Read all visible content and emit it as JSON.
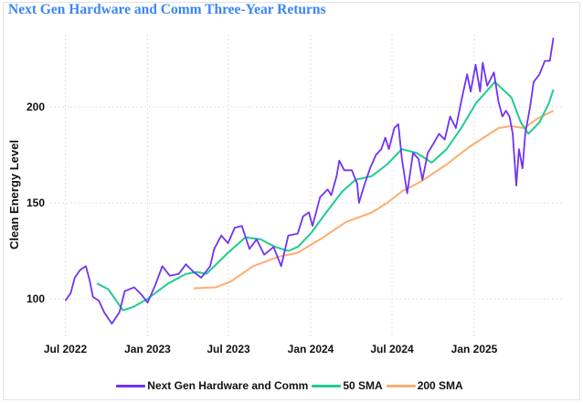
{
  "title": "Next Gen Hardware and Comm Three-Year Returns",
  "chart_data": {
    "type": "line",
    "title": "Next Gen Hardware and Comm Three-Year Returns",
    "xlabel": "",
    "ylabel": "Clean Energy Level",
    "x_ticks": [
      "Jul 2022",
      "Jan 2023",
      "Jul 2023",
      "Jan 2024",
      "Jul 2024",
      "Jan 2025"
    ],
    "x_tick_dates": [
      "2022-07-01",
      "2023-01-01",
      "2023-07-01",
      "2024-01-01",
      "2024-07-01",
      "2025-01-01"
    ],
    "y_ticks": [
      100,
      150,
      200
    ],
    "xlim": [
      "2022-06-10",
      "2025-07-12"
    ],
    "ylim": [
      80,
      240
    ],
    "grid": true,
    "legend_position": "bottom",
    "series": [
      {
        "name": "Next Gen Hardware and Comm",
        "color": "#7033f5",
        "points": [
          [
            "2022-07-01",
            99
          ],
          [
            "2022-07-13",
            103
          ],
          [
            "2022-07-22",
            111
          ],
          [
            "2022-08-03",
            115
          ],
          [
            "2022-08-16",
            117
          ],
          [
            "2022-08-24",
            110
          ],
          [
            "2022-09-01",
            101
          ],
          [
            "2022-09-14",
            99
          ],
          [
            "2022-09-26",
            93
          ],
          [
            "2022-10-13",
            87
          ],
          [
            "2022-10-30",
            93
          ],
          [
            "2022-11-11",
            104
          ],
          [
            "2022-12-02",
            106
          ],
          [
            "2022-12-19",
            102
          ],
          [
            "2023-01-01",
            98
          ],
          [
            "2023-01-18",
            107
          ],
          [
            "2023-02-03",
            117
          ],
          [
            "2023-02-20",
            112
          ],
          [
            "2023-03-12",
            113
          ],
          [
            "2023-03-28",
            118
          ],
          [
            "2023-04-14",
            114
          ],
          [
            "2023-05-01",
            111
          ],
          [
            "2023-05-21",
            117
          ],
          [
            "2023-05-30",
            126
          ],
          [
            "2023-06-15",
            133
          ],
          [
            "2023-06-30",
            129
          ],
          [
            "2023-07-15",
            137
          ],
          [
            "2023-07-31",
            138
          ],
          [
            "2023-08-17",
            126
          ],
          [
            "2023-09-02",
            131
          ],
          [
            "2023-09-19",
            123
          ],
          [
            "2023-10-10",
            127
          ],
          [
            "2023-10-27",
            117
          ],
          [
            "2023-11-12",
            133
          ],
          [
            "2023-12-03",
            134
          ],
          [
            "2023-12-15",
            143
          ],
          [
            "2023-12-28",
            145
          ],
          [
            "2024-01-05",
            138
          ],
          [
            "2024-01-22",
            153
          ],
          [
            "2024-02-08",
            157
          ],
          [
            "2024-02-16",
            154
          ],
          [
            "2024-02-28",
            164
          ],
          [
            "2024-03-05",
            172
          ],
          [
            "2024-03-16",
            167
          ],
          [
            "2024-04-02",
            167
          ],
          [
            "2024-04-14",
            160
          ],
          [
            "2024-04-18",
            150
          ],
          [
            "2024-05-01",
            160
          ],
          [
            "2024-05-13",
            168
          ],
          [
            "2024-05-26",
            175
          ],
          [
            "2024-06-07",
            178
          ],
          [
            "2024-06-16",
            184
          ],
          [
            "2024-06-24",
            178
          ],
          [
            "2024-07-06",
            189
          ],
          [
            "2024-07-15",
            191
          ],
          [
            "2024-07-23",
            173
          ],
          [
            "2024-08-04",
            155
          ],
          [
            "2024-08-17",
            176
          ],
          [
            "2024-08-29",
            173
          ],
          [
            "2024-09-07",
            162
          ],
          [
            "2024-09-19",
            176
          ],
          [
            "2024-10-02",
            181
          ],
          [
            "2024-10-14",
            186
          ],
          [
            "2024-10-27",
            183
          ],
          [
            "2024-11-08",
            195
          ],
          [
            "2024-11-21",
            189
          ],
          [
            "2024-12-03",
            203
          ],
          [
            "2024-12-16",
            217
          ],
          [
            "2024-12-24",
            208
          ],
          [
            "2025-01-04",
            222
          ],
          [
            "2025-01-14",
            208
          ],
          [
            "2025-01-20",
            223
          ],
          [
            "2025-01-30",
            211
          ],
          [
            "2025-02-14",
            218
          ],
          [
            "2025-02-24",
            203
          ],
          [
            "2025-03-05",
            195
          ],
          [
            "2025-03-13",
            198
          ],
          [
            "2025-03-21",
            195
          ],
          [
            "2025-03-28",
            186
          ],
          [
            "2025-04-05",
            159
          ],
          [
            "2025-04-11",
            178
          ],
          [
            "2025-04-19",
            168
          ],
          [
            "2025-04-25",
            186
          ],
          [
            "2025-05-06",
            200
          ],
          [
            "2025-05-14",
            213
          ],
          [
            "2025-05-27",
            217
          ],
          [
            "2025-06-08",
            224
          ],
          [
            "2025-06-19",
            224
          ],
          [
            "2025-06-27",
            236
          ]
        ]
      },
      {
        "name": "50 SMA",
        "color": "#1fcc8f",
        "points": [
          [
            "2022-09-10",
            108
          ],
          [
            "2022-10-05",
            105
          ],
          [
            "2022-11-07",
            94
          ],
          [
            "2022-12-02",
            96
          ],
          [
            "2023-01-01",
            100
          ],
          [
            "2023-02-16",
            108
          ],
          [
            "2023-03-28",
            113
          ],
          [
            "2023-04-22",
            114
          ],
          [
            "2023-05-13",
            113
          ],
          [
            "2023-06-30",
            124
          ],
          [
            "2023-08-08",
            132
          ],
          [
            "2023-09-11",
            131
          ],
          [
            "2023-10-14",
            127
          ],
          [
            "2023-11-12",
            125
          ],
          [
            "2023-12-03",
            127
          ],
          [
            "2024-01-01",
            134
          ],
          [
            "2024-02-08",
            146
          ],
          [
            "2024-03-12",
            156
          ],
          [
            "2024-04-10",
            162
          ],
          [
            "2024-05-17",
            164
          ],
          [
            "2024-06-20",
            170
          ],
          [
            "2024-07-23",
            178
          ],
          [
            "2024-08-25",
            176
          ],
          [
            "2024-09-28",
            171
          ],
          [
            "2024-10-31",
            178
          ],
          [
            "2024-12-03",
            189
          ],
          [
            "2025-01-05",
            202
          ],
          [
            "2025-02-16",
            213
          ],
          [
            "2025-03-25",
            205
          ],
          [
            "2025-04-15",
            192
          ],
          [
            "2025-05-02",
            186
          ],
          [
            "2025-05-27",
            192
          ],
          [
            "2025-06-17",
            202
          ],
          [
            "2025-06-27",
            209
          ]
        ]
      },
      {
        "name": "200 SMA",
        "color": "#ffac70",
        "points": [
          [
            "2023-04-14",
            105.5
          ],
          [
            "2023-06-03",
            106
          ],
          [
            "2023-07-06",
            109
          ],
          [
            "2023-08-25",
            117
          ],
          [
            "2023-10-22",
            122
          ],
          [
            "2023-12-03",
            124
          ],
          [
            "2024-01-22",
            131
          ],
          [
            "2024-03-20",
            140
          ],
          [
            "2024-05-17",
            145
          ],
          [
            "2024-06-20",
            150
          ],
          [
            "2024-07-23",
            156
          ],
          [
            "2024-09-03",
            161
          ],
          [
            "2024-10-31",
            170
          ],
          [
            "2024-12-20",
            179
          ],
          [
            "2025-01-22",
            184
          ],
          [
            "2025-02-24",
            189
          ],
          [
            "2025-03-25",
            190
          ],
          [
            "2025-04-23",
            189
          ],
          [
            "2025-05-23",
            194
          ],
          [
            "2025-06-27",
            198
          ]
        ]
      }
    ]
  }
}
